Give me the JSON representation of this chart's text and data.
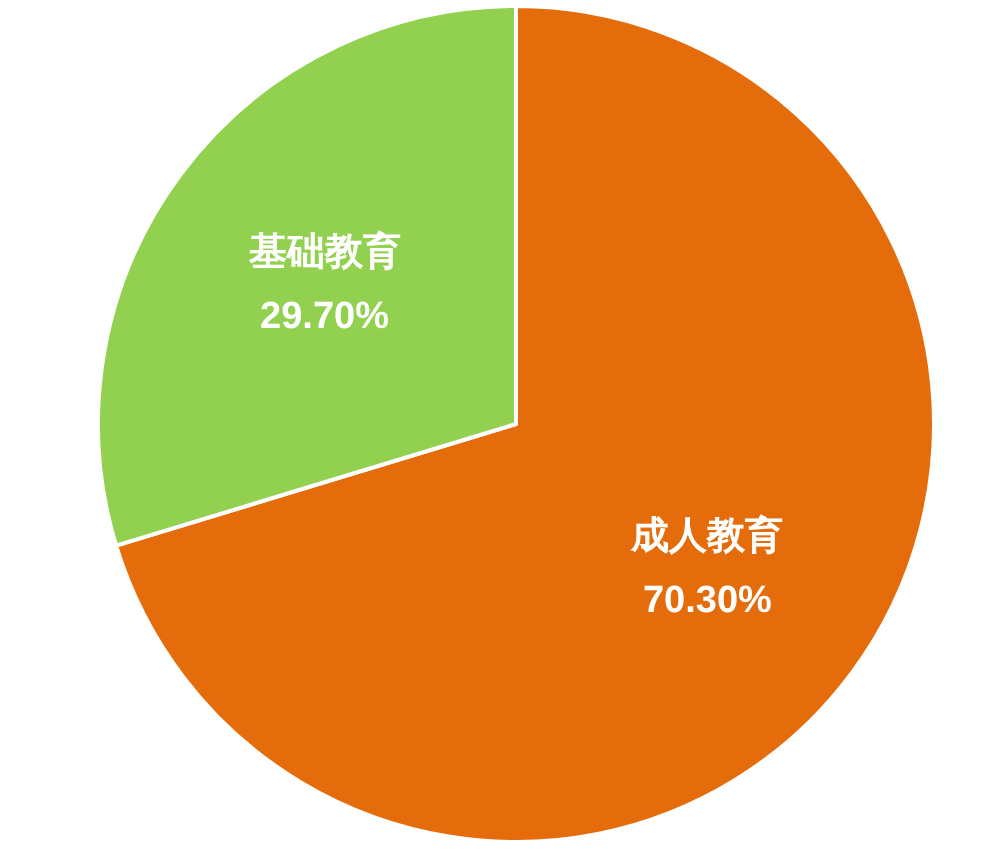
{
  "chart_data": {
    "type": "pie",
    "categories": [
      "成人教育",
      "基础教育"
    ],
    "values": [
      70.3,
      29.7
    ],
    "colors": [
      "#e46c0a",
      "#92d050"
    ],
    "value_labels": [
      "70.30%",
      "29.70%"
    ]
  }
}
